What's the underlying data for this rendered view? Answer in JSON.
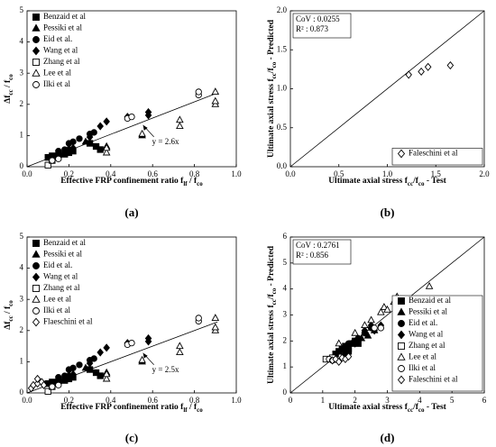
{
  "chart_data": [
    {
      "type": "scatter",
      "label": "(a)",
      "xlabel": [
        "Effective FRP confinement ratio f",
        "lf",
        " / f",
        "co"
      ],
      "ylabel": [
        "Δf",
        "cc",
        " / f",
        "co"
      ],
      "xlim": [
        0,
        1.0
      ],
      "ylim": [
        0,
        5
      ],
      "xticks": [
        {
          "value": 0,
          "label": "0.0"
        },
        {
          "value": 0.2,
          "label": "0.2"
        },
        {
          "value": 0.4,
          "label": "0.4"
        },
        {
          "value": 0.6,
          "label": "0.6"
        },
        {
          "value": 0.8,
          "label": "0.8"
        },
        {
          "value": 1.0,
          "label": "1.0"
        }
      ],
      "yticks": [
        0,
        1,
        2,
        3,
        4,
        5
      ],
      "legend": "upper left",
      "trend": {
        "label": "y = 2.6x",
        "slope": 2.6,
        "xlim": [
          0,
          0.91
        ]
      },
      "series": [
        {
          "name": "Benzaid et al",
          "marker": "square",
          "filled": true,
          "color": "#000",
          "x": [
            0.1,
            0.12,
            0.15,
            0.18,
            0.2,
            0.22,
            0.3,
            0.33,
            0.35
          ],
          "values": [
            0.3,
            0.35,
            0.35,
            0.4,
            0.45,
            0.5,
            0.75,
            0.65,
            0.55
          ]
        },
        {
          "name": "Pessiki et al",
          "marker": "triangle",
          "filled": true,
          "color": "#000",
          "x": [
            0.2,
            0.28,
            0.38,
            0.55
          ],
          "values": [
            0.6,
            0.8,
            0.65,
            1.0
          ]
        },
        {
          "name": "Eid et al.",
          "marker": "circle",
          "filled": true,
          "color": "#000",
          "x": [
            0.15,
            0.18,
            0.2,
            0.22,
            0.25,
            0.3,
            0.32
          ],
          "values": [
            0.5,
            0.55,
            0.75,
            0.8,
            0.9,
            1.05,
            1.1
          ]
        },
        {
          "name": "Wang et al",
          "marker": "diamond",
          "filled": true,
          "color": "#000",
          "x": [
            0.22,
            0.3,
            0.35,
            0.38,
            0.48,
            0.58,
            0.58
          ],
          "values": [
            0.6,
            0.95,
            1.3,
            1.45,
            1.6,
            1.75,
            1.65
          ]
        },
        {
          "name": "Zhang et al",
          "marker": "square",
          "filled": false,
          "color": "#000",
          "x": [
            0.1,
            0.12
          ],
          "values": [
            0.05,
            0.2
          ]
        },
        {
          "name": "Lee et al",
          "marker": "triangle",
          "filled": false,
          "color": "#000",
          "x": [
            0.38,
            0.38,
            0.55,
            0.73,
            0.73,
            0.9,
            0.9,
            0.9
          ],
          "values": [
            0.45,
            0.6,
            1.05,
            1.3,
            1.5,
            2.0,
            2.1,
            2.4
          ]
        },
        {
          "name": "Ilki et al",
          "marker": "circle",
          "filled": false,
          "color": "#000",
          "x": [
            0.12,
            0.15,
            0.48,
            0.5,
            0.82,
            0.82
          ],
          "values": [
            0.2,
            0.25,
            1.55,
            1.6,
            2.3,
            2.4
          ]
        }
      ]
    },
    {
      "type": "scatter",
      "label": "(b)",
      "xlabel": [
        "Ultimate axial stress f",
        "cc",
        "/f",
        "co",
        " - Test"
      ],
      "ylabel": [
        "Ultimate axial stress f",
        "cc",
        "/f",
        "co",
        " - Predicted"
      ],
      "xlim": [
        0,
        2.0
      ],
      "ylim": [
        0,
        2.0
      ],
      "xticks": [
        {
          "value": 0,
          "label": "0.0"
        },
        {
          "value": 0.5,
          "label": "0.5"
        },
        {
          "value": 1.0,
          "label": "1.0"
        },
        {
          "value": 1.5,
          "label": "1.5"
        },
        {
          "value": 2.0,
          "label": "2.0"
        }
      ],
      "yticks": [
        {
          "value": 0,
          "label": "0.0"
        },
        {
          "value": 0.5,
          "label": "0.5"
        },
        {
          "value": 1.0,
          "label": "1.0"
        },
        {
          "value": 1.5,
          "label": "1.5"
        },
        {
          "value": 2.0,
          "label": "2.0"
        }
      ],
      "legend": "lower right",
      "diagonal": true,
      "stats": [
        "CoV : 0.0255",
        "R² : 0.873"
      ],
      "series": [
        {
          "name": "Faleschini et al",
          "marker": "diamond",
          "filled": false,
          "color": "#000",
          "x": [
            1.22,
            1.35,
            1.42,
            1.65
          ],
          "values": [
            1.18,
            1.22,
            1.28,
            1.3
          ]
        }
      ]
    },
    {
      "type": "scatter",
      "label": "(c)",
      "xlabel": [
        "Effective FRP confinement ratio f",
        "lf",
        " / f",
        "co"
      ],
      "ylabel": [
        "Δf",
        "cc",
        " / f",
        "co"
      ],
      "xlim": [
        0,
        1.0
      ],
      "ylim": [
        0,
        5
      ],
      "xticks": [
        {
          "value": 0,
          "label": "0.0"
        },
        {
          "value": 0.2,
          "label": "0.2"
        },
        {
          "value": 0.4,
          "label": "0.4"
        },
        {
          "value": 0.6,
          "label": "0.6"
        },
        {
          "value": 0.8,
          "label": "0.8"
        },
        {
          "value": 1.0,
          "label": "1.0"
        }
      ],
      "yticks": [
        0,
        1,
        2,
        3,
        4,
        5
      ],
      "legend": "upper left",
      "trend": {
        "label": "y = 2.5x",
        "slope": 2.5,
        "xlim": [
          0,
          0.91
        ]
      },
      "series": [
        {
          "name": "Benzaid et al",
          "marker": "square",
          "filled": true,
          "color": "#000",
          "x": [
            0.1,
            0.12,
            0.15,
            0.18,
            0.2,
            0.22,
            0.3,
            0.33,
            0.35
          ],
          "values": [
            0.3,
            0.35,
            0.35,
            0.4,
            0.45,
            0.5,
            0.75,
            0.65,
            0.55
          ]
        },
        {
          "name": "Pessiki et al",
          "marker": "triangle",
          "filled": true,
          "color": "#000",
          "x": [
            0.2,
            0.28,
            0.38,
            0.55
          ],
          "values": [
            0.6,
            0.8,
            0.65,
            1.0
          ]
        },
        {
          "name": "Eid et al.",
          "marker": "circle",
          "filled": true,
          "color": "#000",
          "x": [
            0.15,
            0.18,
            0.2,
            0.22,
            0.25,
            0.3,
            0.32
          ],
          "values": [
            0.5,
            0.55,
            0.75,
            0.8,
            0.9,
            1.05,
            1.1
          ]
        },
        {
          "name": "Wang et al",
          "marker": "diamond",
          "filled": true,
          "color": "#000",
          "x": [
            0.22,
            0.3,
            0.35,
            0.38,
            0.48,
            0.58,
            0.58
          ],
          "values": [
            0.6,
            0.95,
            1.3,
            1.45,
            1.6,
            1.75,
            1.65
          ]
        },
        {
          "name": "Zhang et al",
          "marker": "square",
          "filled": false,
          "color": "#000",
          "x": [
            0.1,
            0.12
          ],
          "values": [
            0.05,
            0.2
          ]
        },
        {
          "name": "Lee et al",
          "marker": "triangle",
          "filled": false,
          "color": "#000",
          "x": [
            0.38,
            0.38,
            0.55,
            0.73,
            0.73,
            0.9,
            0.9,
            0.9
          ],
          "values": [
            0.45,
            0.6,
            1.05,
            1.3,
            1.5,
            2.0,
            2.1,
            2.4
          ]
        },
        {
          "name": "Ilki et al",
          "marker": "circle",
          "filled": false,
          "color": "#000",
          "x": [
            0.12,
            0.15,
            0.48,
            0.5,
            0.82,
            0.82
          ],
          "values": [
            0.2,
            0.25,
            1.55,
            1.6,
            2.3,
            2.4
          ]
        },
        {
          "name": "Flaeschini et al",
          "marker": "diamond",
          "filled": false,
          "color": "#000",
          "x": [
            0.02,
            0.03,
            0.05,
            0.05,
            0.07,
            0.08
          ],
          "values": [
            0.15,
            0.25,
            0.3,
            0.45,
            0.35,
            0.25
          ]
        }
      ]
    },
    {
      "type": "scatter",
      "label": "(d)",
      "xlabel": [
        "Ultimate axial stress f",
        "cc",
        "/f",
        "co",
        " - Test"
      ],
      "ylabel": [
        "Ultimate axial stress f",
        "cc",
        "/f",
        "co",
        " - Predicted"
      ],
      "xlim": [
        0,
        6
      ],
      "ylim": [
        0,
        6
      ],
      "xticks": [
        0,
        1,
        2,
        3,
        4,
        5,
        6
      ],
      "yticks": [
        0,
        1,
        2,
        3,
        4,
        5,
        6
      ],
      "legend": "lower right",
      "diagonal": true,
      "stats": [
        "CoV : 0.2761",
        "R² : 0.856"
      ],
      "series": [
        {
          "name": "Benzaid et al",
          "marker": "square",
          "filled": true,
          "color": "#000",
          "x": [
            1.4,
            1.5,
            1.6,
            1.7,
            1.8,
            1.9,
            2.0,
            2.1,
            1.7,
            1.8
          ],
          "values": [
            1.5,
            1.6,
            1.7,
            1.8,
            1.7,
            1.9,
            2.0,
            1.9,
            1.5,
            1.6
          ]
        },
        {
          "name": "Pessiki et al",
          "marker": "triangle",
          "filled": true,
          "color": "#000",
          "x": [
            1.9,
            2.2,
            2.4,
            2.6
          ],
          "values": [
            1.9,
            2.1,
            2.2,
            2.4
          ]
        },
        {
          "name": "Eid et al.",
          "marker": "circle",
          "filled": true,
          "color": "#000",
          "x": [
            1.6,
            1.8,
            2.0,
            2.1,
            2.3,
            2.5
          ],
          "values": [
            1.7,
            1.9,
            2.0,
            2.1,
            2.3,
            2.5
          ]
        },
        {
          "name": "Wang et al",
          "marker": "diamond",
          "filled": true,
          "color": "#000",
          "x": [
            1.7,
            2.0,
            2.3,
            2.5,
            2.6,
            2.8
          ],
          "values": [
            1.7,
            1.9,
            2.4,
            2.6,
            2.4,
            2.6
          ]
        },
        {
          "name": "Zhang et al",
          "marker": "square",
          "filled": false,
          "color": "#000",
          "x": [
            1.1,
            1.3
          ],
          "values": [
            1.3,
            1.35
          ]
        },
        {
          "name": "Lee et al",
          "marker": "triangle",
          "filled": false,
          "color": "#000",
          "x": [
            1.5,
            2.0,
            2.3,
            2.5,
            2.8,
            2.9,
            3.0,
            3.2,
            3.3,
            3.5,
            3.7,
            4.3
          ],
          "values": [
            1.9,
            2.3,
            2.6,
            2.8,
            3.1,
            3.3,
            3.2,
            3.5,
            3.7,
            3.5,
            3.5,
            4.1
          ]
        },
        {
          "name": "Ilki et al",
          "marker": "circle",
          "filled": false,
          "color": "#000",
          "x": [
            1.2,
            1.3,
            2.6,
            2.8,
            3.6,
            3.6
          ],
          "values": [
            1.3,
            1.25,
            2.5,
            2.5,
            3.1,
            3.2
          ]
        },
        {
          "name": "Faleschini et al",
          "marker": "diamond",
          "filled": false,
          "color": "#000",
          "x": [
            1.3,
            1.4,
            1.5,
            1.6,
            1.7,
            1.8
          ],
          "values": [
            1.25,
            1.3,
            1.2,
            1.35,
            1.3,
            1.4
          ]
        }
      ]
    }
  ]
}
